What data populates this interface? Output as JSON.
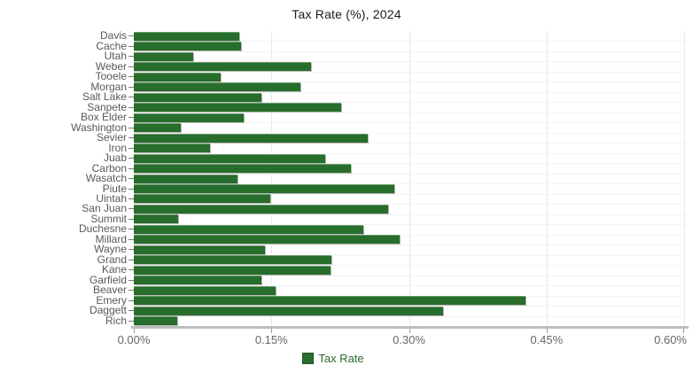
{
  "title": "Tax Rate (%), 2024",
  "legend": {
    "label": "Tax Rate"
  },
  "colors": {
    "bar": "#276d2b",
    "legend_text": "#2b6a2e",
    "category_label": "#595959",
    "tick_label": "#666666",
    "gridline": "#e8e8e8",
    "row_line": "#f3f3f3",
    "baseline": "#bdbdbd",
    "title": "#1a1a1a"
  },
  "chart_data": {
    "type": "bar",
    "orientation": "horizontal",
    "title": "Tax Rate (%), 2024",
    "series_name": "Tax Rate",
    "unit": "%",
    "categories": [
      "Davis",
      "Cache",
      "Utah",
      "Weber",
      "Tooele",
      "Morgan",
      "Salt Lake",
      "Sanpete",
      "Box Elder",
      "Washington",
      "Sevier",
      "Iron",
      "Juab",
      "Carbon",
      "Wasatch",
      "Piute",
      "Uintah",
      "San Juan",
      "Summit",
      "Duchesne",
      "Millard",
      "Wayne",
      "Grand",
      "Kane",
      "Garfield",
      "Beaver",
      "Emery",
      "Daggett",
      "Rich"
    ],
    "values": [
      0.115,
      0.117,
      0.065,
      0.193,
      0.095,
      0.182,
      0.139,
      0.226,
      0.12,
      0.051,
      0.255,
      0.083,
      0.209,
      0.237,
      0.113,
      0.284,
      0.149,
      0.277,
      0.048,
      0.25,
      0.29,
      0.143,
      0.215,
      0.214,
      0.139,
      0.155,
      0.427,
      0.337,
      0.047
    ],
    "xlim": [
      0,
      0.6
    ],
    "x_ticks": [
      0,
      0.15,
      0.3,
      0.45,
      0.6
    ],
    "x_tick_labels": [
      "0.00%",
      "0.15%",
      "0.30%",
      "0.45%",
      "0.60%"
    ],
    "grid": true,
    "legend_position": "bottom"
  }
}
